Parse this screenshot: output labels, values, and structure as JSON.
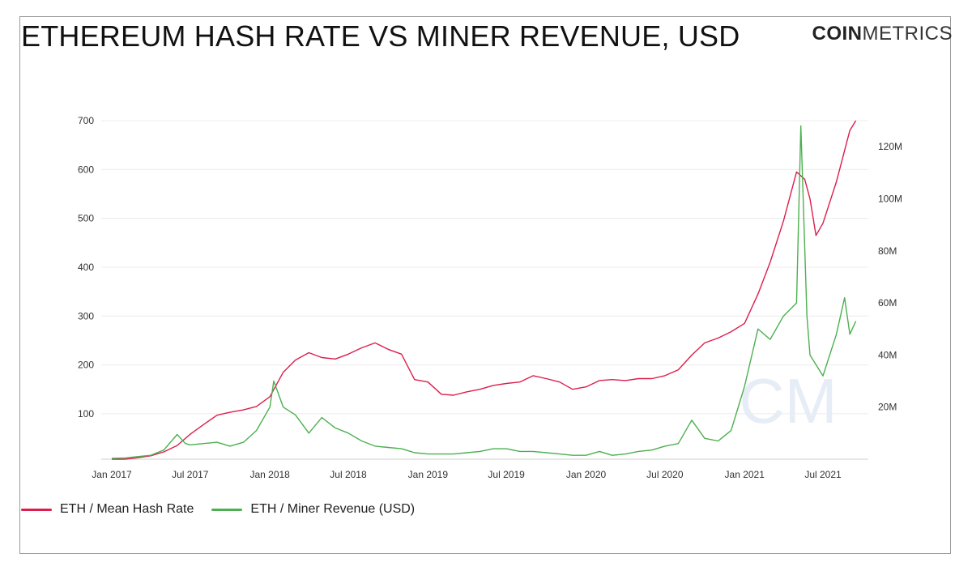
{
  "header": {
    "title": "ETHEREUM HASH RATE VS MINER REVENUE, USD",
    "logo_bold": "COIN",
    "logo_light": "METRICS"
  },
  "watermark": "CM",
  "legend": [
    {
      "label": "ETH / Mean Hash Rate",
      "color": "#dc1e4c"
    },
    {
      "label": "ETH / Miner Revenue (USD)",
      "color": "#4cb050"
    }
  ],
  "chart_data": {
    "type": "line",
    "x_tick_labels": [
      "Jan 2017",
      "Jul 2017",
      "Jan 2018",
      "Jul 2018",
      "Jan 2019",
      "Jul 2019",
      "Jan 2020",
      "Jul 2020",
      "Jan 2021",
      "Jul 2021"
    ],
    "y_left_ticks": [
      100,
      200,
      300,
      400,
      500,
      600,
      700
    ],
    "y_left_labels": [
      "100",
      "200",
      "300",
      "400",
      "500",
      "600",
      "700"
    ],
    "y_left_range": [
      7,
      700
    ],
    "y_right_ticks": [
      20000000,
      40000000,
      60000000,
      80000000,
      100000000,
      120000000
    ],
    "y_right_labels": [
      "20M",
      "40M",
      "60M",
      "80M",
      "100M",
      "120M"
    ],
    "y_right_range": [
      0,
      130000000
    ],
    "x_range": [
      "2017-01-01",
      "2021-09-15"
    ],
    "grid": true,
    "series": [
      {
        "name": "ETH / Mean Hash Rate",
        "axis": "left",
        "color": "#dc1e4c",
        "points": [
          [
            "2017-01-01",
            5
          ],
          [
            "2017-02-01",
            7
          ],
          [
            "2017-03-01",
            10
          ],
          [
            "2017-04-01",
            14
          ],
          [
            "2017-05-01",
            22
          ],
          [
            "2017-06-01",
            35
          ],
          [
            "2017-07-01",
            58
          ],
          [
            "2017-08-01",
            78
          ],
          [
            "2017-09-01",
            97
          ],
          [
            "2017-10-01",
            103
          ],
          [
            "2017-11-01",
            108
          ],
          [
            "2017-12-01",
            115
          ],
          [
            "2018-01-01",
            135
          ],
          [
            "2018-02-01",
            185
          ],
          [
            "2018-03-01",
            210
          ],
          [
            "2018-04-01",
            225
          ],
          [
            "2018-05-01",
            215
          ],
          [
            "2018-06-01",
            212
          ],
          [
            "2018-07-01",
            222
          ],
          [
            "2018-08-01",
            235
          ],
          [
            "2018-09-01",
            245
          ],
          [
            "2018-10-01",
            232
          ],
          [
            "2018-11-01",
            222
          ],
          [
            "2018-12-01",
            170
          ],
          [
            "2019-01-01",
            165
          ],
          [
            "2019-02-01",
            140
          ],
          [
            "2019-03-01",
            138
          ],
          [
            "2019-04-01",
            145
          ],
          [
            "2019-05-01",
            150
          ],
          [
            "2019-06-01",
            158
          ],
          [
            "2019-07-01",
            162
          ],
          [
            "2019-08-01",
            165
          ],
          [
            "2019-09-01",
            178
          ],
          [
            "2019-10-01",
            172
          ],
          [
            "2019-11-01",
            165
          ],
          [
            "2019-12-01",
            150
          ],
          [
            "2020-01-01",
            155
          ],
          [
            "2020-02-01",
            168
          ],
          [
            "2020-03-01",
            170
          ],
          [
            "2020-04-01",
            168
          ],
          [
            "2020-05-01",
            172
          ],
          [
            "2020-06-01",
            172
          ],
          [
            "2020-07-01",
            178
          ],
          [
            "2020-08-01",
            190
          ],
          [
            "2020-09-01",
            220
          ],
          [
            "2020-10-01",
            245
          ],
          [
            "2020-11-01",
            255
          ],
          [
            "2020-12-01",
            268
          ],
          [
            "2021-01-01",
            285
          ],
          [
            "2021-02-01",
            345
          ],
          [
            "2021-03-01",
            410
          ],
          [
            "2021-04-01",
            495
          ],
          [
            "2021-05-01",
            595
          ],
          [
            "2021-05-20",
            580
          ],
          [
            "2021-06-01",
            540
          ],
          [
            "2021-06-15",
            465
          ],
          [
            "2021-07-01",
            490
          ],
          [
            "2021-08-01",
            575
          ],
          [
            "2021-09-01",
            680
          ],
          [
            "2021-09-15",
            700
          ]
        ]
      },
      {
        "name": "ETH / Miner Revenue (USD)",
        "axis": "right",
        "color": "#4cb050",
        "points": [
          [
            "2017-01-01",
            0.3
          ],
          [
            "2017-02-01",
            0.5
          ],
          [
            "2017-03-01",
            1.0
          ],
          [
            "2017-04-01",
            1.5
          ],
          [
            "2017-05-01",
            3.5
          ],
          [
            "2017-06-01",
            9.5
          ],
          [
            "2017-06-20",
            6.0
          ],
          [
            "2017-07-01",
            5.5
          ],
          [
            "2017-08-01",
            6.0
          ],
          [
            "2017-09-01",
            6.5
          ],
          [
            "2017-10-01",
            5.0
          ],
          [
            "2017-11-01",
            6.5
          ],
          [
            "2017-12-01",
            11.0
          ],
          [
            "2018-01-01",
            20.0
          ],
          [
            "2018-01-10",
            30.0
          ],
          [
            "2018-02-01",
            20.0
          ],
          [
            "2018-03-01",
            17.0
          ],
          [
            "2018-04-01",
            10.0
          ],
          [
            "2018-05-01",
            16.0
          ],
          [
            "2018-06-01",
            12.0
          ],
          [
            "2018-07-01",
            10.0
          ],
          [
            "2018-08-01",
            7.0
          ],
          [
            "2018-09-01",
            5.0
          ],
          [
            "2018-10-01",
            4.5
          ],
          [
            "2018-11-01",
            4.0
          ],
          [
            "2018-12-01",
            2.5
          ],
          [
            "2019-01-01",
            2.0
          ],
          [
            "2019-02-01",
            2.0
          ],
          [
            "2019-03-01",
            2.0
          ],
          [
            "2019-04-01",
            2.5
          ],
          [
            "2019-05-01",
            3.0
          ],
          [
            "2019-06-01",
            4.0
          ],
          [
            "2019-07-01",
            4.0
          ],
          [
            "2019-08-01",
            3.0
          ],
          [
            "2019-09-01",
            3.0
          ],
          [
            "2019-10-01",
            2.5
          ],
          [
            "2019-11-01",
            2.0
          ],
          [
            "2019-12-01",
            1.5
          ],
          [
            "2020-01-01",
            1.5
          ],
          [
            "2020-02-01",
            3.0
          ],
          [
            "2020-03-01",
            1.5
          ],
          [
            "2020-04-01",
            2.0
          ],
          [
            "2020-05-01",
            3.0
          ],
          [
            "2020-06-01",
            3.5
          ],
          [
            "2020-07-01",
            5.0
          ],
          [
            "2020-08-01",
            6.0
          ],
          [
            "2020-09-01",
            15.0
          ],
          [
            "2020-10-01",
            8.0
          ],
          [
            "2020-11-01",
            7.0
          ],
          [
            "2020-12-01",
            11.0
          ],
          [
            "2021-01-01",
            28.0
          ],
          [
            "2021-02-01",
            50.0
          ],
          [
            "2021-03-01",
            46.0
          ],
          [
            "2021-04-01",
            55.0
          ],
          [
            "2021-05-01",
            60.0
          ],
          [
            "2021-05-11",
            128.0
          ],
          [
            "2021-05-25",
            55.0
          ],
          [
            "2021-06-01",
            40.0
          ],
          [
            "2021-07-01",
            32.0
          ],
          [
            "2021-08-01",
            48.0
          ],
          [
            "2021-08-20",
            62.0
          ],
          [
            "2021-09-01",
            48.0
          ],
          [
            "2021-09-15",
            53.0
          ]
        ]
      }
    ]
  }
}
